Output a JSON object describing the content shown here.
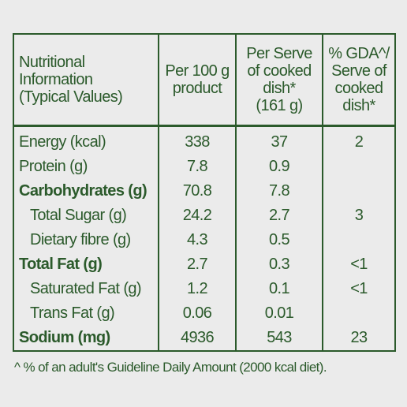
{
  "table": {
    "header": [
      {
        "lines": [
          "Nutritional",
          "Information",
          "(Typical Values)"
        ]
      },
      {
        "lines": [
          "Per 100 g",
          "product"
        ]
      },
      {
        "lines": [
          "Per Serve",
          "of cooked",
          "dish*",
          "(161 g)"
        ]
      },
      {
        "lines": [
          "% GDA^/",
          "Serve of",
          "cooked",
          "dish*"
        ]
      }
    ],
    "rows": [
      {
        "label": "Energy (kcal)",
        "bold": false,
        "indent": false,
        "cells": [
          "338",
          "37",
          "2"
        ]
      },
      {
        "label": "Protein (g)",
        "bold": false,
        "indent": false,
        "cells": [
          "7.8",
          "0.9",
          null
        ]
      },
      {
        "label": "Carbohydrates (g)",
        "bold": true,
        "indent": false,
        "cells": [
          "70.8",
          "7.8",
          null
        ]
      },
      {
        "label": "Total Sugar (g)",
        "bold": false,
        "indent": true,
        "cells": [
          "24.2",
          "2.7",
          "3"
        ]
      },
      {
        "label": "Dietary fibre (g)",
        "bold": false,
        "indent": true,
        "cells": [
          "4.3",
          "0.5",
          null
        ]
      },
      {
        "label": "Total Fat (g)",
        "bold": true,
        "indent": false,
        "cells": [
          "2.7",
          "0.3",
          "<1"
        ]
      },
      {
        "label": "Saturated Fat (g)",
        "bold": false,
        "indent": true,
        "cells": [
          "1.2",
          "0.1",
          "<1"
        ]
      },
      {
        "label": "Trans Fat (g)",
        "bold": false,
        "indent": true,
        "cells": [
          "0.06",
          "0.01",
          null
        ]
      },
      {
        "label": "Sodium (mg)",
        "bold": true,
        "indent": false,
        "cells": [
          "4936",
          "543",
          "23"
        ]
      }
    ]
  },
  "footnote": "^ % of an adult's Guideline Daily Amount (2000 kcal diet)."
}
